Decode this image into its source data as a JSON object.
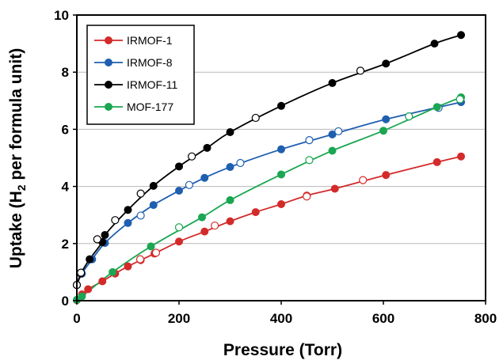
{
  "chart_data": {
    "type": "scatter",
    "xlabel": "Pressure (Torr)",
    "ylabel_main": "Uptake (H",
    "ylabel_sub": "2",
    "ylabel_tail": " per formula unit)",
    "xlim": [
      0,
      800
    ],
    "ylim": [
      0,
      10
    ],
    "xticks": [
      "0",
      "200",
      "400",
      "600",
      "800"
    ],
    "yticks": [
      "0",
      "2",
      "4",
      "6",
      "8",
      "10"
    ],
    "grid": "horizontal",
    "legend_position": "top-left",
    "series": [
      {
        "name": "IRMOF-1",
        "color": "#d42a2a",
        "adsorption": [
          [
            0,
            0.02
          ],
          [
            10,
            0.22
          ],
          [
            22,
            0.4
          ],
          [
            50,
            0.68
          ],
          [
            75,
            0.95
          ],
          [
            100,
            1.2
          ],
          [
            125,
            1.42
          ],
          [
            152,
            1.65
          ],
          [
            200,
            2.07
          ],
          [
            250,
            2.42
          ],
          [
            300,
            2.78
          ],
          [
            350,
            3.1
          ],
          [
            400,
            3.38
          ],
          [
            450,
            3.68
          ],
          [
            505,
            3.92
          ],
          [
            605,
            4.4
          ],
          [
            705,
            4.85
          ],
          [
            752,
            5.05
          ]
        ],
        "desorption": [
          [
            124,
            1.45
          ],
          [
            155,
            1.68
          ],
          [
            270,
            2.63
          ],
          [
            450,
            3.65
          ],
          [
            560,
            4.22
          ]
        ]
      },
      {
        "name": "IRMOF-8",
        "color": "#1f5fb0",
        "adsorption": [
          [
            0,
            0.55
          ],
          [
            10,
            0.95
          ],
          [
            30,
            1.45
          ],
          [
            55,
            2.02
          ],
          [
            100,
            2.72
          ],
          [
            150,
            3.35
          ],
          [
            200,
            3.85
          ],
          [
            250,
            4.3
          ],
          [
            300,
            4.68
          ],
          [
            400,
            5.3
          ],
          [
            500,
            5.82
          ],
          [
            605,
            6.35
          ],
          [
            752,
            6.95
          ]
        ],
        "desorption": [
          [
            125,
            2.98
          ],
          [
            220,
            4.05
          ],
          [
            320,
            4.82
          ],
          [
            455,
            5.62
          ],
          [
            512,
            5.93
          ],
          [
            650,
            6.45
          ],
          [
            708,
            6.75
          ]
        ]
      },
      {
        "name": "IRMOF-11",
        "color": "#000000",
        "adsorption": [
          [
            0,
            0.55
          ],
          [
            8,
            0.95
          ],
          [
            25,
            1.45
          ],
          [
            50,
            2.05
          ],
          [
            55,
            2.3
          ],
          [
            100,
            3.18
          ],
          [
            150,
            4.02
          ],
          [
            200,
            4.7
          ],
          [
            255,
            5.35
          ],
          [
            300,
            5.9
          ],
          [
            400,
            6.82
          ],
          [
            500,
            7.62
          ],
          [
            605,
            8.3
          ],
          [
            700,
            9.0
          ],
          [
            752,
            9.3
          ]
        ],
        "desorption": [
          [
            0,
            0.55
          ],
          [
            8,
            0.98
          ],
          [
            40,
            2.15
          ],
          [
            75,
            2.82
          ],
          [
            125,
            3.75
          ],
          [
            225,
            5.05
          ],
          [
            350,
            6.4
          ],
          [
            555,
            8.05
          ]
        ]
      },
      {
        "name": "MOF-177",
        "color": "#1aa652",
        "adsorption": [
          [
            0,
            0.03
          ],
          [
            10,
            0.15
          ],
          [
            70,
            1.0
          ],
          [
            145,
            1.9
          ],
          [
            245,
            2.92
          ],
          [
            300,
            3.52
          ],
          [
            400,
            4.42
          ],
          [
            500,
            5.25
          ],
          [
            600,
            5.95
          ],
          [
            705,
            6.78
          ],
          [
            752,
            7.12
          ]
        ],
        "desorption": [
          [
            200,
            2.57
          ],
          [
            455,
            4.92
          ],
          [
            650,
            6.45
          ],
          [
            750,
            7.05
          ]
        ]
      }
    ]
  }
}
